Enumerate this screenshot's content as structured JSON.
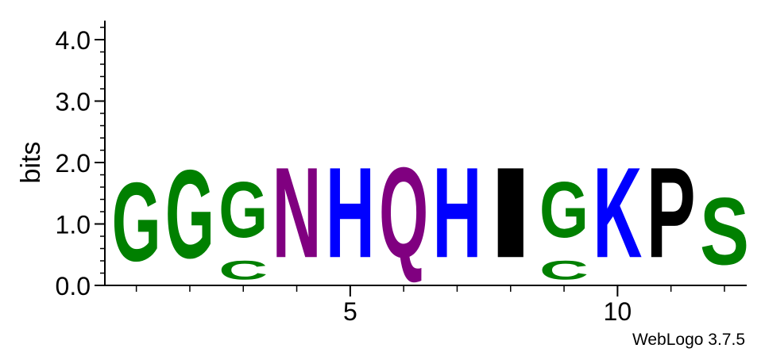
{
  "chart_data": {
    "type": "sequence-logo",
    "ylabel": "bits",
    "ylim": [
      0,
      4.3
    ],
    "y_ticks": [
      "0.0",
      "1.0",
      "2.0",
      "3.0",
      "4.0"
    ],
    "x_ticks": [
      {
        "position": 5,
        "label": "5"
      },
      {
        "position": 10,
        "label": "10"
      }
    ],
    "footer": "WebLogo 3.7.5",
    "colors": {
      "G": "#008000",
      "C": "#008000",
      "S": "#008000",
      "N": "#800080",
      "Q": "#800080",
      "H": "#0000ff",
      "K": "#0000ff",
      "I": "#000000",
      "P": "#000000"
    },
    "positions": [
      {
        "position": 1,
        "stack": [
          {
            "letter": "G",
            "bits": 2.05
          }
        ]
      },
      {
        "position": 2,
        "stack": [
          {
            "letter": "G",
            "bits": 2.3
          }
        ]
      },
      {
        "position": 3,
        "stack": [
          {
            "letter": "C",
            "bits": 0.5
          },
          {
            "letter": "G",
            "bits": 1.45
          }
        ]
      },
      {
        "position": 4,
        "stack": [
          {
            "letter": "N",
            "bits": 2.35
          }
        ]
      },
      {
        "position": 5,
        "stack": [
          {
            "letter": "H",
            "bits": 2.35
          }
        ]
      },
      {
        "position": 6,
        "stack": [
          {
            "letter": "Q",
            "bits": 2.35
          }
        ]
      },
      {
        "position": 7,
        "stack": [
          {
            "letter": "H",
            "bits": 2.35
          }
        ]
      },
      {
        "position": 8,
        "stack": [
          {
            "letter": "I",
            "bits": 2.35
          }
        ]
      },
      {
        "position": 9,
        "stack": [
          {
            "letter": "C",
            "bits": 0.5
          },
          {
            "letter": "G",
            "bits": 1.45
          }
        ]
      },
      {
        "position": 10,
        "stack": [
          {
            "letter": "K",
            "bits": 2.35
          }
        ]
      },
      {
        "position": 11,
        "stack": [
          {
            "letter": "P",
            "bits": 2.35
          }
        ]
      },
      {
        "position": 12,
        "stack": [
          {
            "letter": "S",
            "bits": 1.75
          }
        ]
      }
    ]
  }
}
